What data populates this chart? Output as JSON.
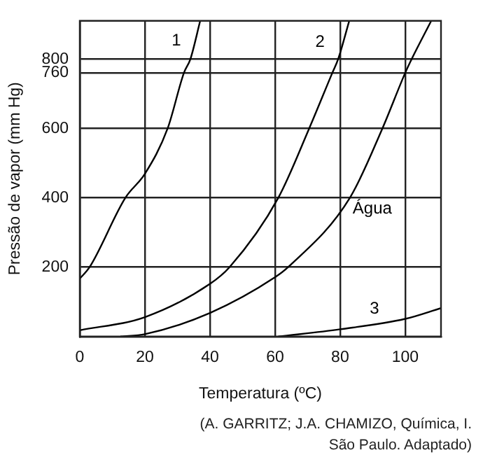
{
  "chart_data": {
    "type": "line",
    "xlabel": "Temperatura (ºC)",
    "ylabel": "Pressão de vapor (mm Hg)",
    "xlim": [
      0,
      111
    ],
    "xticks": [
      0,
      20,
      40,
      60,
      80,
      100
    ],
    "ylim": [
      0,
      910
    ],
    "yticks": [
      200,
      400,
      600,
      760,
      800
    ],
    "grid": true,
    "legend": false,
    "marker": "none",
    "series": [
      {
        "name": "1",
        "color": "#000000",
        "x": [
          0,
          3,
          14,
          20,
          27,
          32,
          34,
          37
        ],
        "values": [
          167,
          200,
          400,
          469,
          600,
          760,
          800,
          910
        ]
      },
      {
        "name": "2",
        "color": "#000000",
        "x": [
          0,
          20,
          40,
          46,
          61,
          70.5,
          77.6,
          79.4,
          82.8
        ],
        "values": [
          18,
          56,
          152,
          200,
          400,
          600,
          760,
          800,
          910
        ]
      },
      {
        "name": "Água",
        "color": "#000000",
        "x": [
          12.5,
          20,
          40,
          60,
          64,
          83,
          93,
          100,
          102,
          108
        ],
        "values": [
          0,
          7,
          68,
          171,
          200,
          400,
          600,
          760,
          800,
          910
        ]
      },
      {
        "name": "3",
        "color": "#000000",
        "x": [
          61,
          80,
          100,
          111
        ],
        "values": [
          0,
          21,
          51,
          82
        ]
      }
    ],
    "annotations": [
      "(A. GARRITZ; J.A. CHAMIZO, Química, I. São Paulo. Adaptado)"
    ]
  }
}
